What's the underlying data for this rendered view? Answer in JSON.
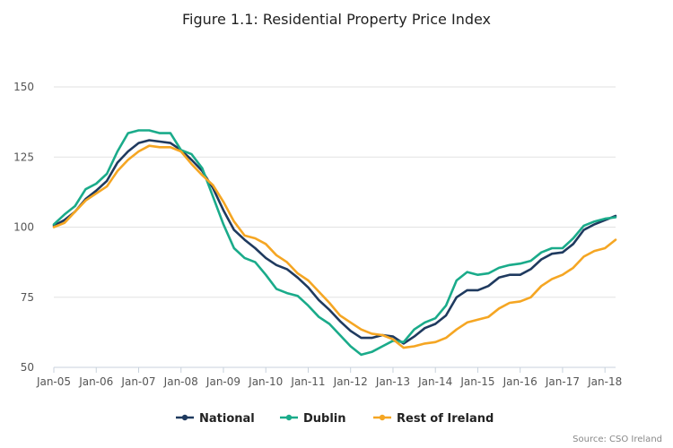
{
  "chart_data": {
    "type": "line",
    "title": "Figure 1.1: Residential Property Price Index",
    "source": "Source: CSO Ireland",
    "ylim": [
      50,
      150
    ],
    "yticks": [
      50,
      75,
      100,
      125,
      150
    ],
    "xlim": [
      "2005-01",
      "2018-04"
    ],
    "xticks": [
      {
        "date": "2005-01",
        "label": "Jan-05"
      },
      {
        "date": "2006-01",
        "label": "Jan-06"
      },
      {
        "date": "2007-01",
        "label": "Jan-07"
      },
      {
        "date": "2008-01",
        "label": "Jan-08"
      },
      {
        "date": "2009-01",
        "label": "Jan-09"
      },
      {
        "date": "2010-01",
        "label": "Jan-10"
      },
      {
        "date": "2011-01",
        "label": "Jan-11"
      },
      {
        "date": "2012-01",
        "label": "Jan-12"
      },
      {
        "date": "2013-01",
        "label": "Jan-13"
      },
      {
        "date": "2014-01",
        "label": "Jan-14"
      },
      {
        "date": "2015-01",
        "label": "Jan-15"
      },
      {
        "date": "2016-01",
        "label": "Jan-16"
      },
      {
        "date": "2017-01",
        "label": "Jan-17"
      },
      {
        "date": "2018-01",
        "label": "Jan-18"
      }
    ],
    "grid": true,
    "legend_position": "bottom",
    "series": [
      {
        "name": "National",
        "color": "#1f3a5f",
        "points": [
          [
            "2005-01",
            100.5
          ],
          [
            "2005-04",
            102.5
          ],
          [
            "2005-07",
            105.5
          ],
          [
            "2005-10",
            110
          ],
          [
            "2006-01",
            113
          ],
          [
            "2006-04",
            116.5
          ],
          [
            "2006-07",
            123
          ],
          [
            "2006-10",
            127
          ],
          [
            "2007-01",
            130
          ],
          [
            "2007-04",
            131
          ],
          [
            "2007-07",
            130.5
          ],
          [
            "2007-10",
            130
          ],
          [
            "2008-01",
            127.5
          ],
          [
            "2008-04",
            124
          ],
          [
            "2008-07",
            120
          ],
          [
            "2008-10",
            114
          ],
          [
            "2009-01",
            106
          ],
          [
            "2009-04",
            99
          ],
          [
            "2009-07",
            95.5
          ],
          [
            "2009-10",
            92.5
          ],
          [
            "2010-01",
            89
          ],
          [
            "2010-04",
            86.5
          ],
          [
            "2010-07",
            85
          ],
          [
            "2010-10",
            82
          ],
          [
            "2011-01",
            78.5
          ],
          [
            "2011-04",
            74
          ],
          [
            "2011-07",
            70.5
          ],
          [
            "2011-10",
            66.5
          ],
          [
            "2012-01",
            63
          ],
          [
            "2012-04",
            60.5
          ],
          [
            "2012-07",
            60.5
          ],
          [
            "2012-10",
            61.5
          ],
          [
            "2013-01",
            61
          ],
          [
            "2013-04",
            58.5
          ],
          [
            "2013-07",
            61
          ],
          [
            "2013-10",
            64
          ],
          [
            "2014-01",
            65.5
          ],
          [
            "2014-04",
            68.5
          ],
          [
            "2014-07",
            75
          ],
          [
            "2014-10",
            77.5
          ],
          [
            "2015-01",
            77.5
          ],
          [
            "2015-04",
            79
          ],
          [
            "2015-07",
            82
          ],
          [
            "2015-10",
            83
          ],
          [
            "2016-01",
            83
          ],
          [
            "2016-04",
            85
          ],
          [
            "2016-07",
            88.5
          ],
          [
            "2016-10",
            90.5
          ],
          [
            "2017-01",
            91
          ],
          [
            "2017-04",
            94
          ],
          [
            "2017-07",
            99
          ],
          [
            "2017-10",
            101
          ],
          [
            "2018-01",
            102.5
          ],
          [
            "2018-04",
            104
          ]
        ]
      },
      {
        "name": "Dublin",
        "color": "#1aab8a",
        "points": [
          [
            "2005-01",
            101
          ],
          [
            "2005-04",
            104.5
          ],
          [
            "2005-07",
            107.5
          ],
          [
            "2005-10",
            113.5
          ],
          [
            "2006-01",
            115.5
          ],
          [
            "2006-04",
            119
          ],
          [
            "2006-07",
            127
          ],
          [
            "2006-10",
            133.5
          ],
          [
            "2007-01",
            134.5
          ],
          [
            "2007-04",
            134.5
          ],
          [
            "2007-07",
            133.5
          ],
          [
            "2007-10",
            133.5
          ],
          [
            "2008-01",
            127.5
          ],
          [
            "2008-04",
            126
          ],
          [
            "2008-07",
            121
          ],
          [
            "2008-10",
            111
          ],
          [
            "2009-01",
            101
          ],
          [
            "2009-04",
            92.5
          ],
          [
            "2009-07",
            89
          ],
          [
            "2009-10",
            87.5
          ],
          [
            "2010-01",
            83
          ],
          [
            "2010-04",
            78
          ],
          [
            "2010-07",
            76.5
          ],
          [
            "2010-10",
            75.5
          ],
          [
            "2011-01",
            72
          ],
          [
            "2011-04",
            68
          ],
          [
            "2011-07",
            65.5
          ],
          [
            "2011-10",
            61.5
          ],
          [
            "2012-01",
            57.5
          ],
          [
            "2012-04",
            54.5
          ],
          [
            "2012-07",
            55.5
          ],
          [
            "2012-10",
            57.5
          ],
          [
            "2013-01",
            59.5
          ],
          [
            "2013-04",
            59
          ],
          [
            "2013-07",
            63.5
          ],
          [
            "2013-10",
            66
          ],
          [
            "2014-01",
            67.5
          ],
          [
            "2014-04",
            72
          ],
          [
            "2014-07",
            81
          ],
          [
            "2014-10",
            84
          ],
          [
            "2015-01",
            83
          ],
          [
            "2015-04",
            83.5
          ],
          [
            "2015-07",
            85.5
          ],
          [
            "2015-10",
            86.5
          ],
          [
            "2016-01",
            87
          ],
          [
            "2016-04",
            88
          ],
          [
            "2016-07",
            91
          ],
          [
            "2016-10",
            92.5
          ],
          [
            "2017-01",
            92.5
          ],
          [
            "2017-04",
            96
          ],
          [
            "2017-07",
            100.5
          ],
          [
            "2017-10",
            102
          ],
          [
            "2018-01",
            103
          ],
          [
            "2018-04",
            103.5
          ]
        ]
      },
      {
        "name": "Rest of Ireland",
        "color": "#f5a623",
        "points": [
          [
            "2005-01",
            100
          ],
          [
            "2005-04",
            101.5
          ],
          [
            "2005-07",
            105.5
          ],
          [
            "2005-10",
            109.5
          ],
          [
            "2006-01",
            112
          ],
          [
            "2006-04",
            114.5
          ],
          [
            "2006-07",
            120
          ],
          [
            "2006-10",
            124
          ],
          [
            "2007-01",
            127
          ],
          [
            "2007-04",
            129
          ],
          [
            "2007-07",
            128.5
          ],
          [
            "2007-10",
            128.5
          ],
          [
            "2008-01",
            127
          ],
          [
            "2008-04",
            122.5
          ],
          [
            "2008-07",
            118.5
          ],
          [
            "2008-10",
            115
          ],
          [
            "2009-01",
            109
          ],
          [
            "2009-04",
            102
          ],
          [
            "2009-07",
            97
          ],
          [
            "2009-10",
            96
          ],
          [
            "2010-01",
            94
          ],
          [
            "2010-04",
            90
          ],
          [
            "2010-07",
            87.5
          ],
          [
            "2010-10",
            83.5
          ],
          [
            "2011-01",
            81
          ],
          [
            "2011-04",
            77
          ],
          [
            "2011-07",
            73
          ],
          [
            "2011-10",
            68.5
          ],
          [
            "2012-01",
            66
          ],
          [
            "2012-04",
            63.5
          ],
          [
            "2012-07",
            62
          ],
          [
            "2012-10",
            61.5
          ],
          [
            "2013-01",
            60
          ],
          [
            "2013-04",
            57
          ],
          [
            "2013-07",
            57.5
          ],
          [
            "2013-10",
            58.5
          ],
          [
            "2014-01",
            59
          ],
          [
            "2014-04",
            60.5
          ],
          [
            "2014-07",
            63.5
          ],
          [
            "2014-10",
            66
          ],
          [
            "2015-01",
            67
          ],
          [
            "2015-04",
            68
          ],
          [
            "2015-07",
            71
          ],
          [
            "2015-10",
            73
          ],
          [
            "2016-01",
            73.5
          ],
          [
            "2016-04",
            75
          ],
          [
            "2016-07",
            79
          ],
          [
            "2016-10",
            81.5
          ],
          [
            "2017-01",
            83
          ],
          [
            "2017-04",
            85.5
          ],
          [
            "2017-07",
            89.5
          ],
          [
            "2017-10",
            91.5
          ],
          [
            "2018-01",
            92.5
          ],
          [
            "2018-04",
            95.5
          ]
        ]
      }
    ]
  }
}
